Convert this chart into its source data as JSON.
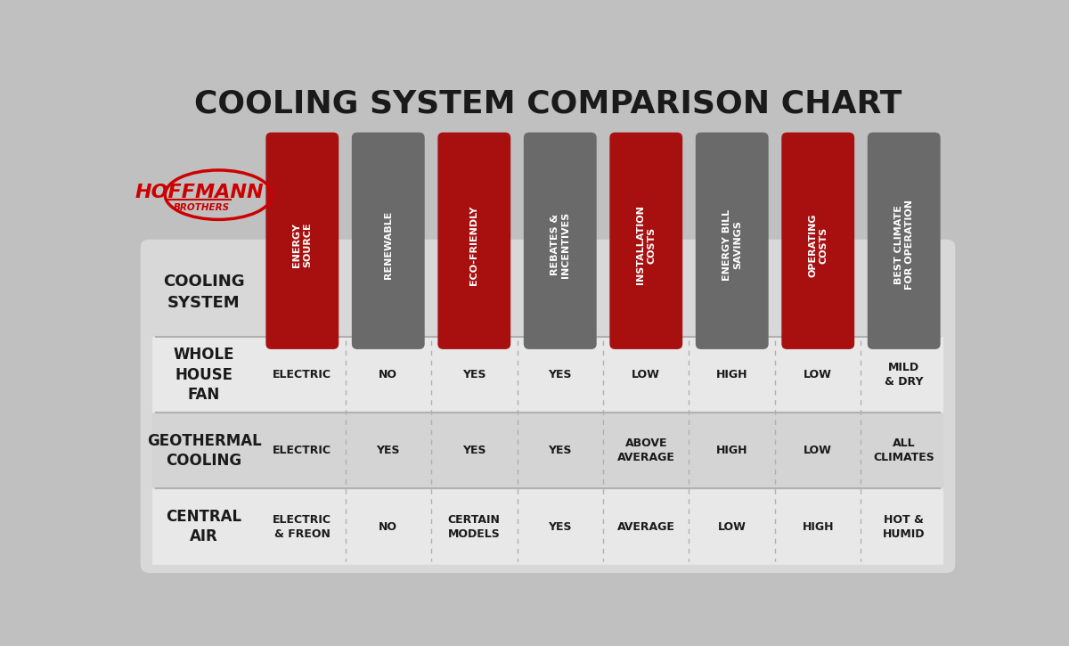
{
  "title": "COOLING SYSTEM COMPARISON CHART",
  "title_fontsize": 26,
  "bg_color": "#c0c0c0",
  "table_bg": "#d8d8d8",
  "row_alt_colors": [
    "#e8e8e8",
    "#d4d4d4",
    "#e8e8e8"
  ],
  "col_headers": [
    "ENERGY\nSOURCE",
    "RENEWABLE",
    "ECO-FRIENDLY",
    "REBATES &\nINCENTIVES",
    "INSTALLATION\nCOSTS",
    "ENERGY BILL\nSAVINGS",
    "OPERATING\nCOSTS",
    "BEST CLIMATE\nFOR OPERATION"
  ],
  "col_colors": [
    "#a81010",
    "#6a6a6a",
    "#a81010",
    "#6a6a6a",
    "#a81010",
    "#6a6a6a",
    "#a81010",
    "#6a6a6a"
  ],
  "row_labels": [
    "WHOLE\nHOUSE\nFAN",
    "GEOTHERMAL\nCOOLING",
    "CENTRAL\nAIR"
  ],
  "table_data": [
    [
      "ELECTRIC",
      "NO",
      "YES",
      "YES",
      "LOW",
      "HIGH",
      "LOW",
      "MILD\n& DRY"
    ],
    [
      "ELECTRIC",
      "YES",
      "YES",
      "YES",
      "ABOVE\nAVERAGE",
      "HIGH",
      "LOW",
      "ALL\nCLIMATES"
    ],
    [
      "ELECTRIC\n& FREON",
      "NO",
      "CERTAIN\nMODELS",
      "YES",
      "AVERAGE",
      "LOW",
      "HIGH",
      "HOT &\nHUMID"
    ]
  ],
  "white": "#ffffff",
  "dark": "#1a1a1a",
  "red": "#cc0000",
  "divider_color": "#b0b0b0"
}
